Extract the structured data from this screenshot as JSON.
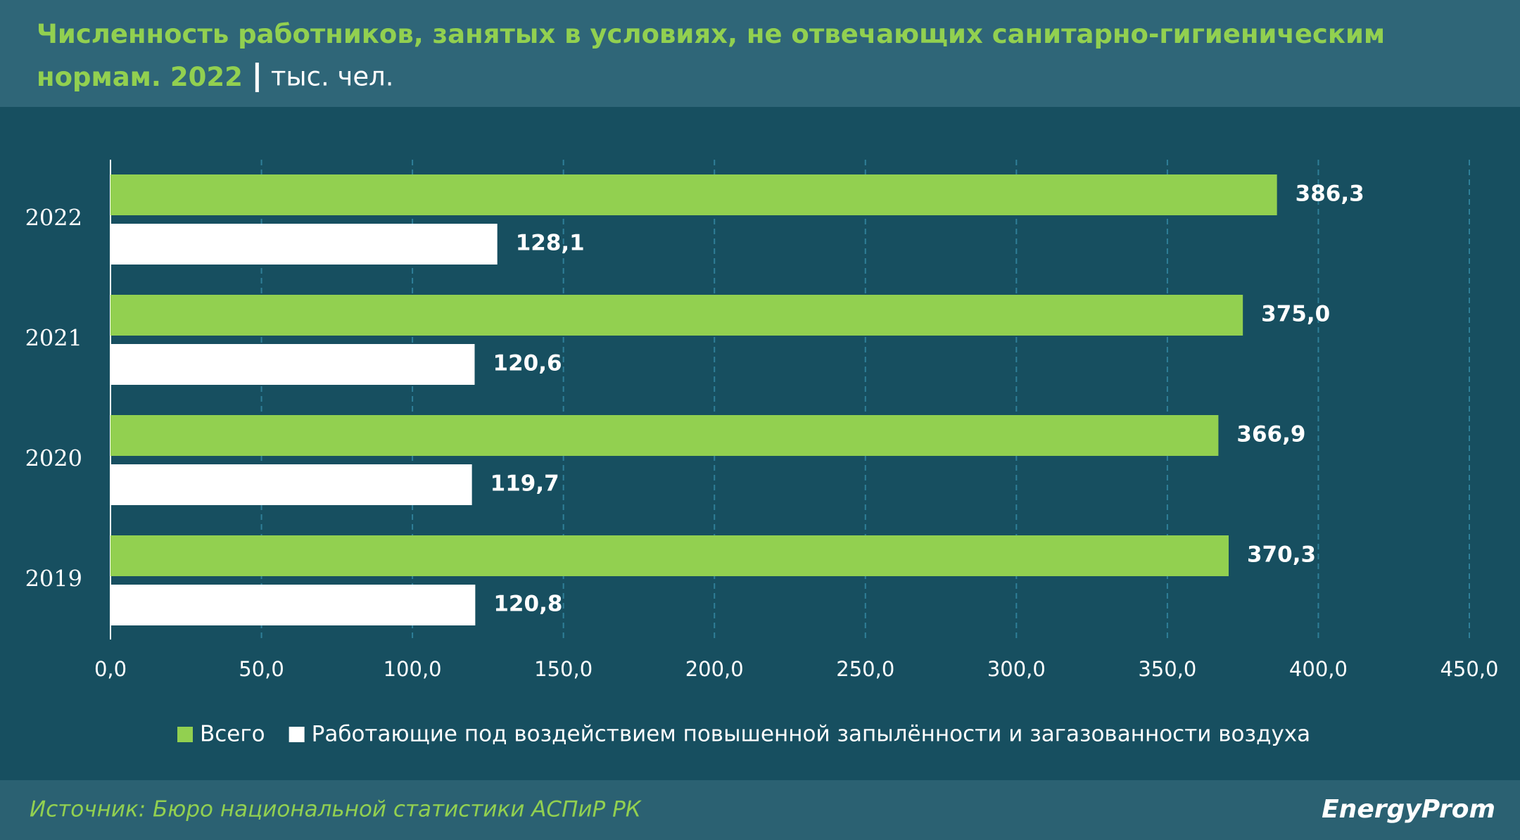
{
  "chart_data": {
    "type": "hbar",
    "title": "Численность работников, занятых в условиях, не отвечающих санитарно-гигиеническим нормам. 2022",
    "unit": "тыс. чел.",
    "categories": [
      "2022",
      "2021",
      "2020",
      "2019"
    ],
    "series": [
      {
        "name": "Всего",
        "color": "#92d050",
        "values": [
          386.3,
          375.0,
          366.9,
          370.3
        ],
        "value_labels": [
          "386,3",
          "375,0",
          "366,9",
          "370,3"
        ]
      },
      {
        "name": "Работающие под воздействием повышенной запылённости и загазованности воздуха",
        "color": "#ffffff",
        "values": [
          128.1,
          120.6,
          119.7,
          120.8
        ],
        "value_labels": [
          "128,1",
          "120,6",
          "119,7",
          "120,8"
        ]
      }
    ],
    "xlim": [
      0,
      450
    ],
    "xticks": [
      {
        "value": 0,
        "label": "0,0"
      },
      {
        "value": 50,
        "label": "50,0"
      },
      {
        "value": 100,
        "label": "100,0"
      },
      {
        "value": 150,
        "label": "150,0"
      },
      {
        "value": 200,
        "label": "200,0"
      },
      {
        "value": 250,
        "label": "250,0"
      },
      {
        "value": 300,
        "label": "300,0"
      },
      {
        "value": 350,
        "label": "350,0"
      },
      {
        "value": 400,
        "label": "400,0"
      },
      {
        "value": 450,
        "label": "450,0"
      }
    ],
    "grid": true,
    "source": "Источник: Бюро национальной статистики АСПиР РК",
    "logo": "EnergyProm"
  }
}
